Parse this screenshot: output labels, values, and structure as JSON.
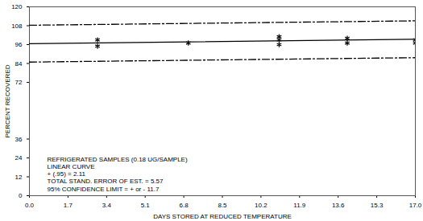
{
  "chart_data": {
    "type": "scatter",
    "xlabel": "DAYS STORED AT REDUCED TEMPERATURE",
    "ylabel": "PERCENT RECOVERED",
    "xlim": [
      0,
      17
    ],
    "ylim": [
      0,
      120
    ],
    "xticks": [
      {
        "value": 0,
        "label": "0.0"
      },
      1.7,
      3.4,
      5.1,
      6.8,
      8.5,
      10.2,
      11.9,
      13.6,
      15.3,
      {
        "value": 17,
        "label": "17.0"
      }
    ],
    "yticks": [
      0,
      12,
      24,
      36,
      72,
      84,
      96,
      108,
      120
    ],
    "grid": false,
    "annotations": [
      "REFRIGERATED SAMPLES (0.18 UG/SAMPLE)",
      "LINEAR CURVE",
      "+ (.95) = 2.11",
      "TOTAL STAND. ERROR OF EST. = 5.57",
      "95% CONFIDENCE LIMIT = + or - 11.7"
    ],
    "series": [
      {
        "type": "scatter",
        "marker": "asterisk",
        "color": "#000000",
        "x": [
          3,
          3,
          7,
          11,
          11,
          11,
          14,
          14,
          17,
          17
        ],
        "values": [
          99,
          95,
          97,
          101,
          99,
          96,
          100,
          97,
          97,
          99
        ]
      },
      {
        "type": "line",
        "line_style": "solid",
        "color": "#000000",
        "x": [
          0,
          17
        ],
        "values": [
          96.6,
          99.4
        ]
      },
      {
        "type": "line",
        "line_style": "dashdot",
        "color": "#000000",
        "x": [
          0,
          17
        ],
        "values": [
          108.3,
          111.1
        ]
      },
      {
        "type": "line",
        "line_style": "dashdot",
        "color": "#000000",
        "x": [
          0,
          17
        ],
        "values": [
          84.9,
          87.7
        ]
      }
    ]
  }
}
